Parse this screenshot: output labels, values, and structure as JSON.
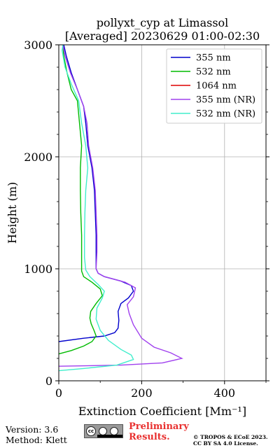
{
  "chart_data": {
    "type": "line",
    "title_line1": "pollyxt_cyp at Limassol",
    "title_line2": "[Averaged] 20230629 01:00-02:30",
    "xlabel": "Extinction Coefficient [Mm⁻¹]",
    "ylabel": "Height (m)",
    "xlim": [
      0,
      500
    ],
    "ylim": [
      0,
      3000
    ],
    "xticks": [
      0,
      200,
      400
    ],
    "yticks": [
      0,
      1000,
      2000,
      3000
    ],
    "grid": true,
    "legend_position": "top-right",
    "series": [
      {
        "name": "355 nm",
        "color": "#0000cc",
        "points": [
          [
            0,
            350
          ],
          [
            60,
            380
          ],
          [
            110,
            400
          ],
          [
            135,
            430
          ],
          [
            143,
            470
          ],
          [
            145,
            540
          ],
          [
            143,
            620
          ],
          [
            150,
            690
          ],
          [
            168,
            740
          ],
          [
            180,
            800
          ],
          [
            175,
            850
          ],
          [
            150,
            890
          ],
          [
            110,
            930
          ],
          [
            95,
            960
          ],
          [
            90,
            1000
          ],
          [
            90,
            1150
          ],
          [
            90,
            1300
          ],
          [
            88,
            1500
          ],
          [
            86,
            1700
          ],
          [
            80,
            1900
          ],
          [
            70,
            2100
          ],
          [
            65,
            2300
          ],
          [
            60,
            2450
          ],
          [
            45,
            2600
          ],
          [
            30,
            2750
          ],
          [
            18,
            2900
          ],
          [
            12,
            3000
          ]
        ]
      },
      {
        "name": "532 nm",
        "color": "#00bb00",
        "points": [
          [
            0,
            240
          ],
          [
            30,
            270
          ],
          [
            60,
            310
          ],
          [
            80,
            350
          ],
          [
            90,
            400
          ],
          [
            85,
            450
          ],
          [
            78,
            510
          ],
          [
            75,
            560
          ],
          [
            77,
            620
          ],
          [
            90,
            690
          ],
          [
            105,
            760
          ],
          [
            100,
            820
          ],
          [
            80,
            880
          ],
          [
            60,
            930
          ],
          [
            55,
            980
          ],
          [
            55,
            1100
          ],
          [
            55,
            1300
          ],
          [
            53,
            1500
          ],
          [
            52,
            1700
          ],
          [
            52,
            1900
          ],
          [
            55,
            2100
          ],
          [
            50,
            2300
          ],
          [
            45,
            2500
          ],
          [
            30,
            2600
          ],
          [
            20,
            2750
          ],
          [
            12,
            2900
          ],
          [
            10,
            3000
          ]
        ]
      },
      {
        "name": "1064 nm",
        "color": "#dd0000",
        "points": []
      },
      {
        "name": "355 nm (NR)",
        "color": "#a040ee",
        "points": [
          [
            0,
            130
          ],
          [
            150,
            140
          ],
          [
            250,
            160
          ],
          [
            297,
            200
          ],
          [
            270,
            250
          ],
          [
            230,
            300
          ],
          [
            200,
            380
          ],
          [
            180,
            500
          ],
          [
            170,
            600
          ],
          [
            165,
            680
          ],
          [
            180,
            750
          ],
          [
            185,
            830
          ],
          [
            160,
            880
          ],
          [
            110,
            930
          ],
          [
            95,
            960
          ],
          [
            90,
            1000
          ],
          [
            92,
            1150
          ],
          [
            92,
            1300
          ],
          [
            90,
            1500
          ],
          [
            88,
            1700
          ],
          [
            82,
            1900
          ],
          [
            72,
            2100
          ],
          [
            68,
            2300
          ],
          [
            60,
            2450
          ],
          [
            45,
            2600
          ],
          [
            28,
            2750
          ],
          [
            15,
            2900
          ],
          [
            10,
            3000
          ]
        ]
      },
      {
        "name": "532 nm (NR)",
        "color": "#40eecc",
        "points": [
          [
            0,
            90
          ],
          [
            60,
            110
          ],
          [
            140,
            140
          ],
          [
            180,
            190
          ],
          [
            175,
            230
          ],
          [
            150,
            280
          ],
          [
            120,
            360
          ],
          [
            100,
            450
          ],
          [
            90,
            550
          ],
          [
            92,
            650
          ],
          [
            105,
            740
          ],
          [
            110,
            800
          ],
          [
            95,
            860
          ],
          [
            75,
            930
          ],
          [
            65,
            990
          ],
          [
            62,
            1100
          ],
          [
            62,
            1300
          ],
          [
            63,
            1500
          ],
          [
            65,
            1700
          ],
          [
            70,
            1900
          ],
          [
            65,
            2100
          ],
          [
            55,
            2300
          ],
          [
            48,
            2500
          ],
          [
            30,
            2650
          ],
          [
            15,
            2800
          ],
          [
            8,
            2950
          ],
          [
            10,
            3000
          ]
        ]
      }
    ]
  },
  "footer": {
    "version": "Version: 3.6",
    "method": "Method: Klett",
    "preliminary_line1": "Preliminary",
    "preliminary_line2": "Results.",
    "copyright_line1": "© TROPOS & ECoE 2023.",
    "copyright_line2": "CC BY SA 4.0 License.",
    "license_badge": "cc-by-sa-icon"
  }
}
